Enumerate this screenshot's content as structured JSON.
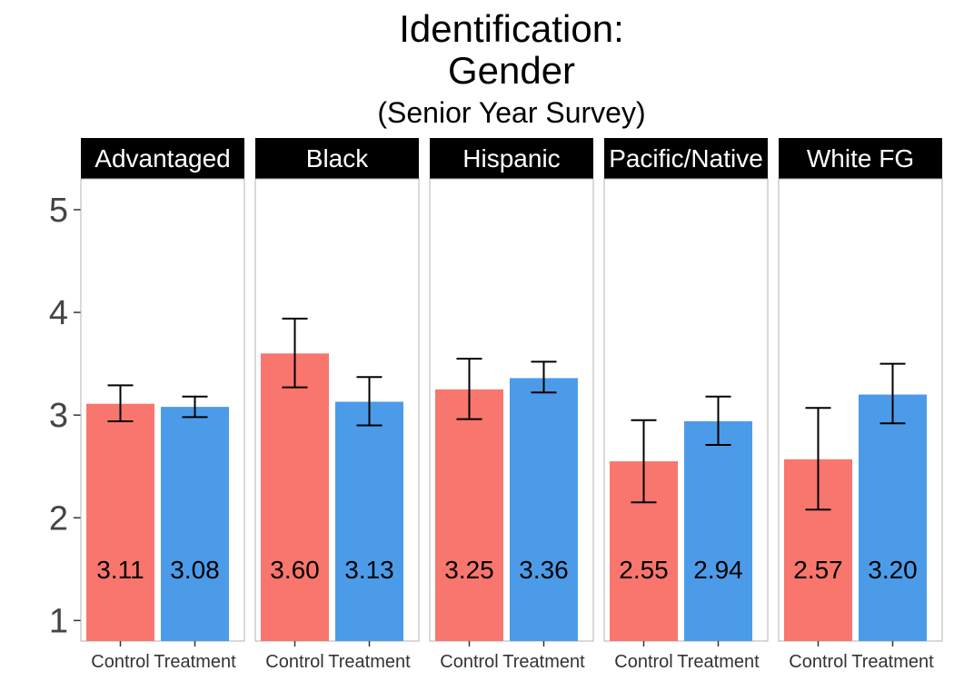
{
  "chart_data": {
    "type": "bar",
    "title_lines": [
      "Identification:",
      "Gender"
    ],
    "subtitle": "(Senior Year Survey)",
    "xlabel": "",
    "ylabel": "",
    "ylim": [
      0.8,
      5.3
    ],
    "yticks": [
      1,
      2,
      3,
      4,
      5
    ],
    "grid": false,
    "categories": [
      "Control",
      "Treatment"
    ],
    "colors": {
      "Control": "#F8766D",
      "Treatment": "#4C9BE8"
    },
    "panels": [
      {
        "name": "Advantaged",
        "values": [
          3.11,
          3.08
        ],
        "labels": [
          "3.11",
          "3.08"
        ],
        "error_low": [
          2.94,
          2.98
        ],
        "error_high": [
          3.29,
          3.18
        ]
      },
      {
        "name": "Black",
        "values": [
          3.6,
          3.13
        ],
        "labels": [
          "3.60",
          "3.13"
        ],
        "error_low": [
          3.27,
          2.9
        ],
        "error_high": [
          3.94,
          3.37
        ]
      },
      {
        "name": "Hispanic",
        "values": [
          3.25,
          3.36
        ],
        "labels": [
          "3.25",
          "3.36"
        ],
        "error_low": [
          2.96,
          3.22
        ],
        "error_high": [
          3.55,
          3.52
        ]
      },
      {
        "name": "Pacific/Native",
        "values": [
          2.55,
          2.94
        ],
        "labels": [
          "2.55",
          "2.94"
        ],
        "error_low": [
          2.15,
          2.71
        ],
        "error_high": [
          2.95,
          3.18
        ]
      },
      {
        "name": "White FG",
        "values": [
          2.57,
          3.2
        ],
        "labels": [
          "2.57",
          "3.20"
        ],
        "error_low": [
          2.08,
          2.92
        ],
        "error_high": [
          3.07,
          3.5
        ]
      }
    ],
    "value_label_y": 1.5
  }
}
